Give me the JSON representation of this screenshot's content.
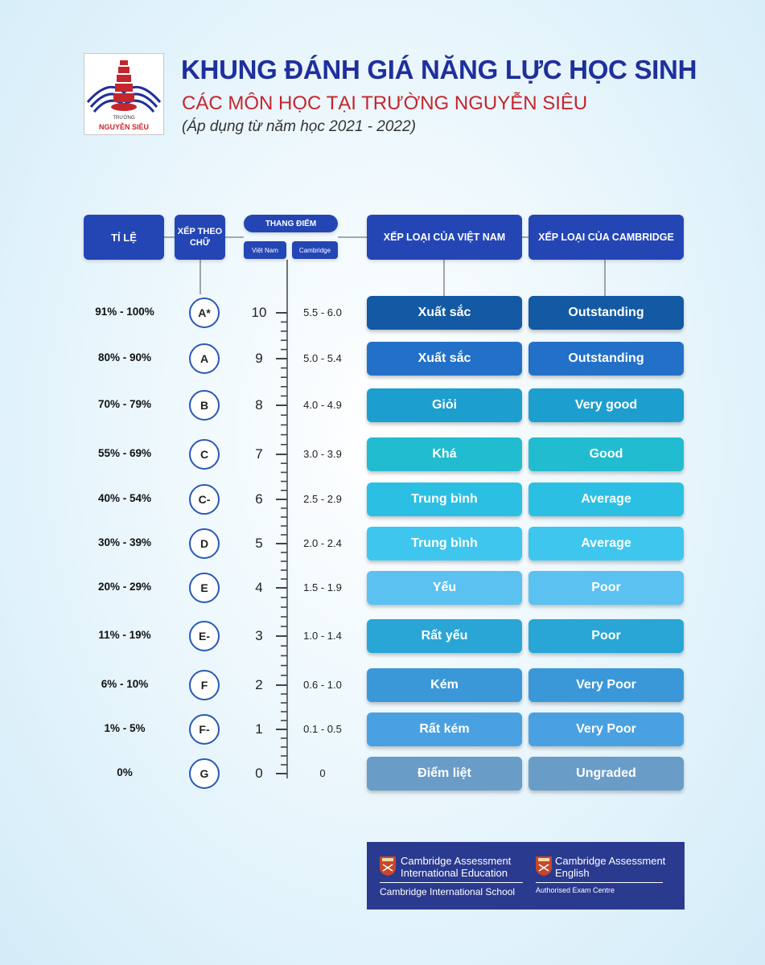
{
  "header": {
    "logo_top_text": "TRƯỜNG",
    "logo_name": "NGUYỄN SIÊU",
    "title": "KHUNG ĐÁNH GIÁ NĂNG LỰC HỌC SINH",
    "subtitle": "CÁC MÔN HỌC TẠI TRƯỜNG NGUYỄN SIÊU",
    "applied": "(Áp dụng từ năm học 2021 - 2022)"
  },
  "columns": {
    "ratio": "TỈ LỆ",
    "letter": "XẾP THEO CHỮ",
    "scale": "THANG ĐIỂM",
    "scale_vn": "Việt Nam",
    "scale_cam": "Cambridge",
    "vn_grade": "XẾP LOẠI CỦA VIỆT NAM",
    "cam_grade": "XẾP LOẠI CỦA CAMBRIDGE"
  },
  "rows": [
    {
      "ratio": "91% - 100%",
      "letter": "A*",
      "vn_score": "10",
      "cam_score": "5.5 - 6.0",
      "vn_grade": "Xuất sắc",
      "cam_grade": "Outstanding",
      "color": "#1359a4"
    },
    {
      "ratio": "80% - 90%",
      "letter": "A",
      "vn_score": "9",
      "cam_score": "5.0 - 5.4",
      "vn_grade": "Xuất sắc",
      "cam_grade": "Outstanding",
      "color": "#2370c8"
    },
    {
      "ratio": "70% - 79%",
      "letter": "B",
      "vn_score": "8",
      "cam_score": "4.0 - 4.9",
      "vn_grade": "Giỏi",
      "cam_grade": "Very good",
      "color": "#1c9fcf"
    },
    {
      "ratio": "55% - 69%",
      "letter": "C",
      "vn_score": "7",
      "cam_score": "3.0 - 3.9",
      "vn_grade": "Khá",
      "cam_grade": "Good",
      "color": "#22bcd0"
    },
    {
      "ratio": "40% - 54%",
      "letter": "C-",
      "vn_score": "6",
      "cam_score": "2.5 - 2.9",
      "vn_grade": "Trung bình",
      "cam_grade": "Average",
      "color": "#2bc0e3"
    },
    {
      "ratio": "30% - 39%",
      "letter": "D",
      "vn_score": "5",
      "cam_score": "2.0 - 2.4",
      "vn_grade": "Trung bình",
      "cam_grade": "Average",
      "color": "#3ec6ee"
    },
    {
      "ratio": "20% - 29%",
      "letter": "E",
      "vn_score": "4",
      "cam_score": "1.5 - 1.9",
      "vn_grade": "Yếu",
      "cam_grade": "Poor",
      "color": "#5ac1f1"
    },
    {
      "ratio": "11% - 19%",
      "letter": "E-",
      "vn_score": "3",
      "cam_score": "1.0 - 1.4",
      "vn_grade": "Rất yếu",
      "cam_grade": "Poor",
      "color": "#29a6d6"
    },
    {
      "ratio": "6% - 10%",
      "letter": "F",
      "vn_score": "2",
      "cam_score": "0.6 - 1.0",
      "vn_grade": "Kém",
      "cam_grade": "Very Poor",
      "color": "#3b98d8"
    },
    {
      "ratio": "1% - 5%",
      "letter": "F-",
      "vn_score": "1",
      "cam_score": "0.1 - 0.5",
      "vn_grade": "Rất kém",
      "cam_grade": "Very Poor",
      "color": "#4aa1e2"
    },
    {
      "ratio": "0%",
      "letter": "G",
      "vn_score": "0",
      "cam_score": "0",
      "vn_grade": "Điểm liệt",
      "cam_grade": "Ungraded",
      "color": "#6a9cc8"
    }
  ],
  "footer": {
    "left_line1": "Cambridge Assessment",
    "left_line2": "International Education",
    "left_line3": "Cambridge International School",
    "right_line1": "Cambridge Assessment",
    "right_line2": "English",
    "right_line3": "Authorised Exam Centre"
  }
}
